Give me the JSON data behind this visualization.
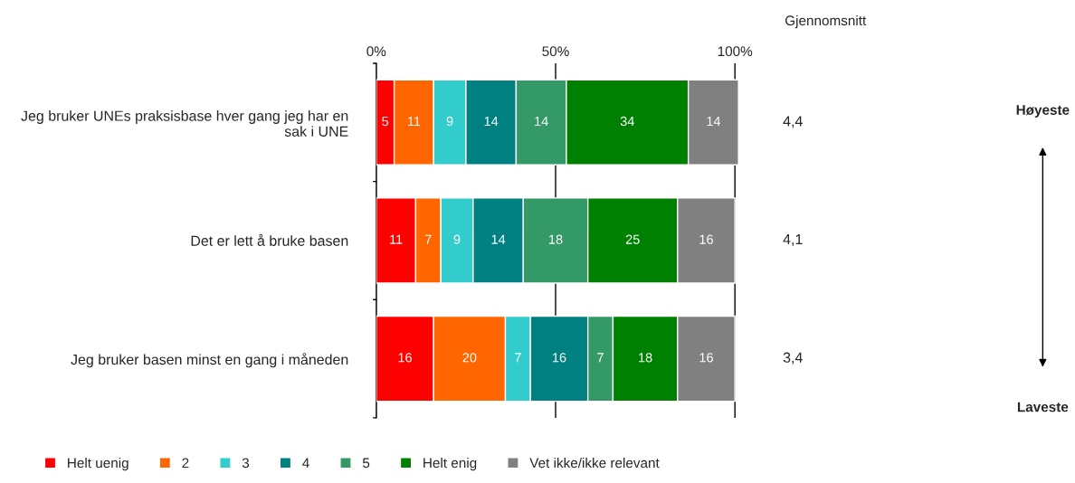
{
  "chart_data": {
    "type": "bar",
    "orientation": "horizontal",
    "stacked": true,
    "data_labels": true,
    "categories": [
      "Jeg bruker UNEs praksisbase hver gang jeg har en sak i UNE",
      "Det er lett å bruke basen",
      "Jeg bruker basen minst en gang i måneden"
    ],
    "series": [
      {
        "name": "Helt uenig",
        "color": "#ff0000",
        "values": [
          5,
          11,
          16
        ]
      },
      {
        "name": "2",
        "color": "#ff6600",
        "values": [
          11,
          7,
          20
        ]
      },
      {
        "name": "3",
        "color": "#33cccc",
        "values": [
          9,
          9,
          7
        ]
      },
      {
        "name": "4",
        "color": "#008080",
        "values": [
          14,
          14,
          16
        ]
      },
      {
        "name": "5",
        "color": "#339966",
        "values": [
          14,
          18,
          7
        ]
      },
      {
        "name": "Helt enig",
        "color": "#008000",
        "values": [
          34,
          25,
          18
        ]
      },
      {
        "name": "Vet ikke/ikke relevant",
        "color": "#808080",
        "values": [
          14,
          16,
          16
        ]
      }
    ],
    "xlim": [
      0,
      101
    ],
    "xticks": [
      {
        "value": 0,
        "label": "0%"
      },
      {
        "value": 50,
        "label": "50%"
      },
      {
        "value": 100,
        "label": "100%"
      }
    ],
    "grid": "x",
    "legend": "bottom",
    "annotations": [
      "Gjennomsnitt",
      "4,4",
      "4,1",
      "3,4",
      "Høyeste",
      "Laveste"
    ]
  }
}
